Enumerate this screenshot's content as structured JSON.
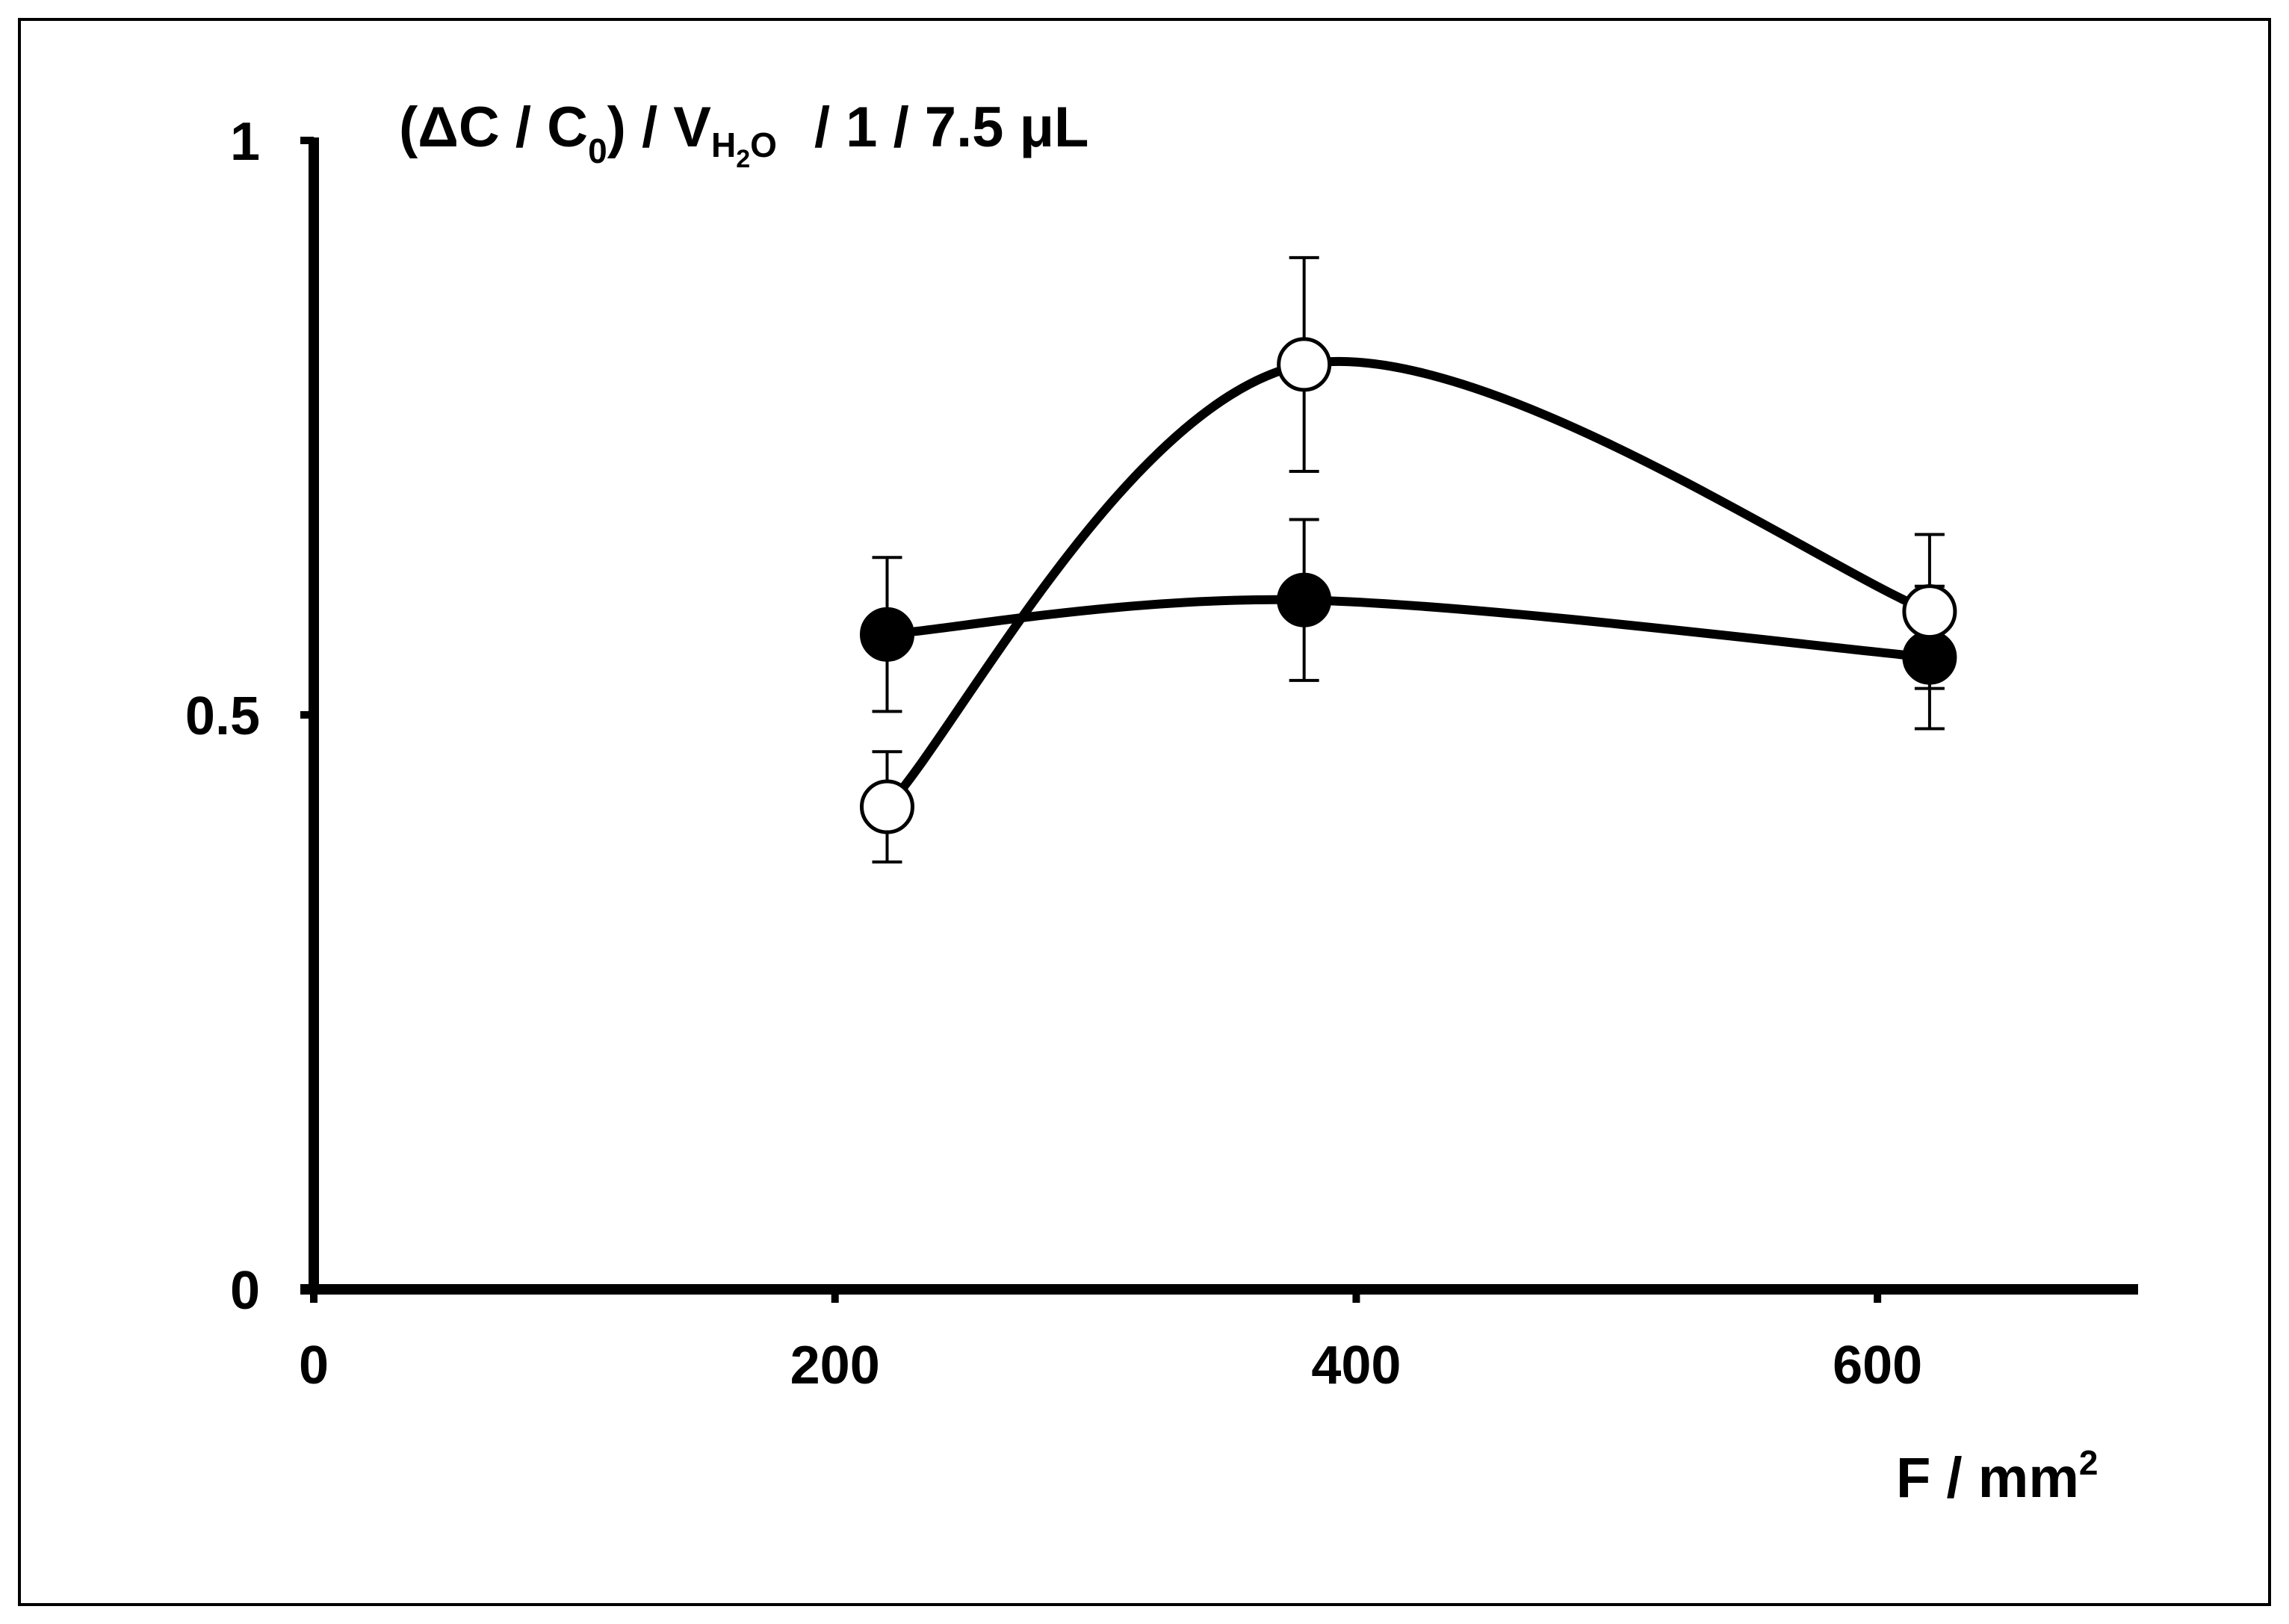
{
  "chart_data": {
    "type": "line",
    "title": "",
    "ylabel": {
      "p1": "(ΔC / C",
      "p1_sub": "0",
      "p2": ") / V",
      "p2_sub_a": "H",
      "p2_sub_b": "2",
      "p2_sub_c": "O",
      "p3": "/   1 / 7.5 μL"
    },
    "xlabel": {
      "text": "F  /  mm",
      "sup": "2"
    },
    "xlim": [
      0,
      700
    ],
    "ylim": [
      0,
      1
    ],
    "xticks": [
      0,
      200,
      400,
      600
    ],
    "xtick_labels": [
      "0",
      "200",
      "400",
      "600"
    ],
    "yticks": [
      0,
      0.5,
      1
    ],
    "ytick_labels": [
      "0",
      "0.5",
      "1"
    ],
    "grid": false,
    "legend": "none",
    "series": [
      {
        "marker": "filled-circle",
        "x": [
          220,
          380,
          620
        ],
        "y": [
          0.57,
          0.6,
          0.55
        ],
        "err": [
          0.067,
          0.07,
          0.062
        ]
      },
      {
        "marker": "open-circle",
        "x": [
          220,
          380,
          620
        ],
        "y": [
          0.42,
          0.805,
          0.59
        ],
        "err": [
          0.048,
          0.093,
          0.067
        ]
      }
    ]
  }
}
